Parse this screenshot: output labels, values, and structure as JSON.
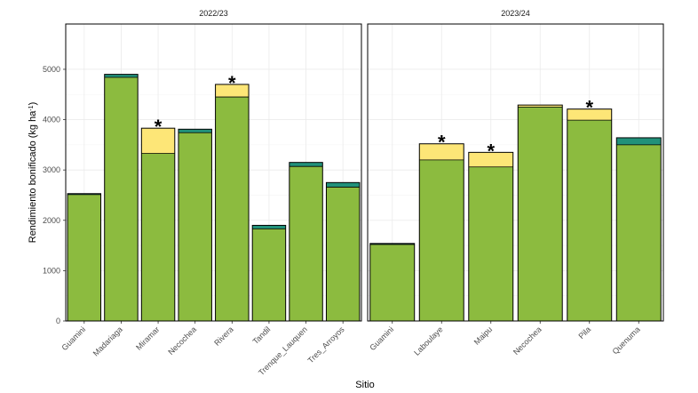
{
  "chart_data": {
    "type": "bar",
    "stacked": true,
    "xlabel": "Sitio",
    "ylabel_main": "Rendimiento bonificado (kg ha",
    "ylabel_sup": "-1",
    "ylabel_close": ")",
    "ylim": [
      0,
      5900
    ],
    "yticks": [
      0,
      1000,
      2000,
      3000,
      4000,
      5000
    ],
    "ytick_labels": [
      "0",
      "1000",
      "2000",
      "3000",
      "4000",
      "5000"
    ],
    "colors": {
      "base": "#8cbb3f",
      "increment_yellow": "#fde677",
      "increment_teal": "#21917a"
    },
    "panels": [
      {
        "title": "2022/23",
        "sites": [
          {
            "name": "Guamini",
            "base": 2510,
            "top": 2530,
            "top_color": "teal",
            "star": false
          },
          {
            "name": "Madariaga",
            "base": 4840,
            "top": 4900,
            "top_color": "teal",
            "star": false
          },
          {
            "name": "Miramar",
            "base": 3330,
            "top": 3830,
            "top_color": "yellow",
            "star": true
          },
          {
            "name": "Necochea",
            "base": 3740,
            "top": 3810,
            "top_color": "teal",
            "star": false
          },
          {
            "name": "Rivera",
            "base": 4450,
            "top": 4700,
            "top_color": "yellow",
            "star": true
          },
          {
            "name": "Tandil",
            "base": 1830,
            "top": 1900,
            "top_color": "teal",
            "star": false
          },
          {
            "name": "Trenque_Lauquen",
            "base": 3070,
            "top": 3150,
            "top_color": "teal",
            "star": false
          },
          {
            "name": "Tres_Arroyos",
            "base": 2660,
            "top": 2750,
            "top_color": "teal",
            "star": false
          }
        ]
      },
      {
        "title": "2023/24",
        "sites": [
          {
            "name": "Guamini",
            "base": 1520,
            "top": 1540,
            "top_color": "teal",
            "star": false
          },
          {
            "name": "Laboulaye",
            "base": 3200,
            "top": 3520,
            "top_color": "yellow",
            "star": true
          },
          {
            "name": "Maipu",
            "base": 3060,
            "top": 3350,
            "top_color": "yellow",
            "star": true
          },
          {
            "name": "Necochea",
            "base": 4250,
            "top": 4290,
            "top_color": "yellow",
            "star": false
          },
          {
            "name": "Pila",
            "base": 3990,
            "top": 4210,
            "top_color": "yellow",
            "star": true
          },
          {
            "name": "Quenuma",
            "base": 3500,
            "top": 3640,
            "top_color": "teal",
            "star": false
          }
        ]
      }
    ],
    "star_symbol": "*"
  }
}
